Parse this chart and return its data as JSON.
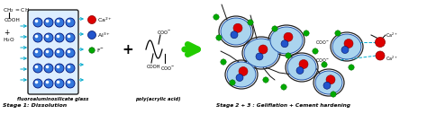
{
  "bg_color": "#ffffff",
  "stage1_label": "Stage 1: Dissolution",
  "stage23_label": "Stage 2 + 3 : Gelifiation + Cement hardening",
  "poly_label": "poly(acrylic acid)",
  "glass_label": "fluoroaluminosilicate glass",
  "ca_color": "#dd0000",
  "al_color": "#2255cc",
  "f_color": "#00aa00",
  "arrow_color": "#22cc00",
  "cyan_color": "#00aacc",
  "figw": 4.74,
  "figh": 1.27
}
